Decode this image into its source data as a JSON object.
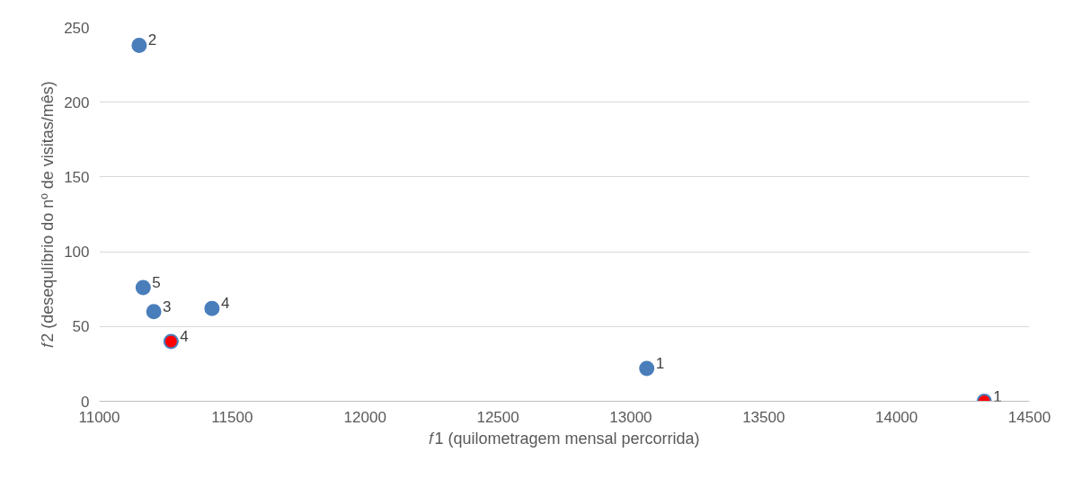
{
  "chart_data": {
    "type": "scatter",
    "xlabel": "𝑓1 (quilometragem mensal percorrida)",
    "ylabel": "𝑓2 (desequlíbrio do nº de visitas/mês)",
    "series": [
      {
        "color": "#4a7ebb",
        "x": [
          11150,
          11165,
          11205,
          11424,
          13060
        ],
        "values": [
          238,
          76,
          60,
          62,
          22
        ]
      },
      {
        "color": "#ff0000",
        "x": [
          11270,
          14330
        ],
        "values": [
          40,
          0
        ]
      }
    ],
    "annotations": [
      {
        "text": "2",
        "x": 11150,
        "y": 238
      },
      {
        "text": "5",
        "x": 11165,
        "y": 76
      },
      {
        "text": "3",
        "x": 11205,
        "y": 60
      },
      {
        "text": "4",
        "x": 11424,
        "y": 62
      },
      {
        "text": "1",
        "x": 13060,
        "y": 22
      },
      {
        "text": "4",
        "x": 11270,
        "y": 40
      },
      {
        "text": "1",
        "x": 14330,
        "y": 0
      }
    ],
    "xlim": [
      11000,
      14500
    ],
    "xticks": [
      11000,
      11500,
      12000,
      12500,
      13000,
      13500,
      14000,
      14500
    ],
    "ylim": [
      0,
      250
    ],
    "yticks": [
      0,
      50,
      100,
      150,
      200,
      250
    ],
    "grid": "y",
    "marker": "circle"
  }
}
